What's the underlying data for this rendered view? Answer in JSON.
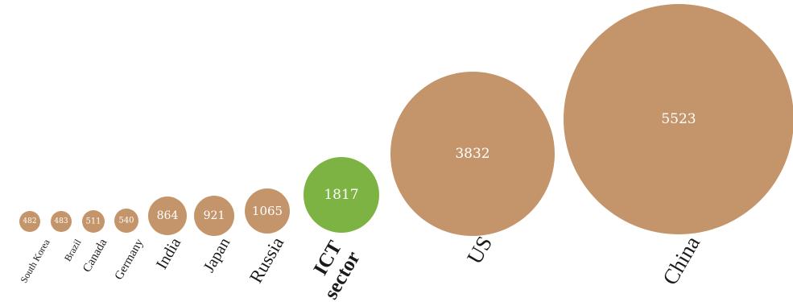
{
  "chart_data": {
    "type": "bubble",
    "title": "",
    "unit": "",
    "colors": {
      "country": "#c4956a",
      "highlight": "#7cb342"
    },
    "bubbles": [
      {
        "label": "South Korea",
        "value": 482,
        "highlight": false
      },
      {
        "label": "Brazil",
        "value": 483,
        "highlight": false
      },
      {
        "label": "Canada",
        "value": 511,
        "highlight": false
      },
      {
        "label": "Germany",
        "value": 540,
        "highlight": false
      },
      {
        "label": "India",
        "value": 864,
        "highlight": false
      },
      {
        "label": "Japan",
        "value": 921,
        "highlight": false
      },
      {
        "label": "Russia",
        "value": 1065,
        "highlight": false
      },
      {
        "label": "ICT sector",
        "label_lines": [
          "ICT",
          "sector"
        ],
        "value": 1817,
        "highlight": true
      },
      {
        "label": "US",
        "value": 3832,
        "highlight": false
      },
      {
        "label": "China",
        "value": 5523,
        "highlight": false
      }
    ]
  }
}
